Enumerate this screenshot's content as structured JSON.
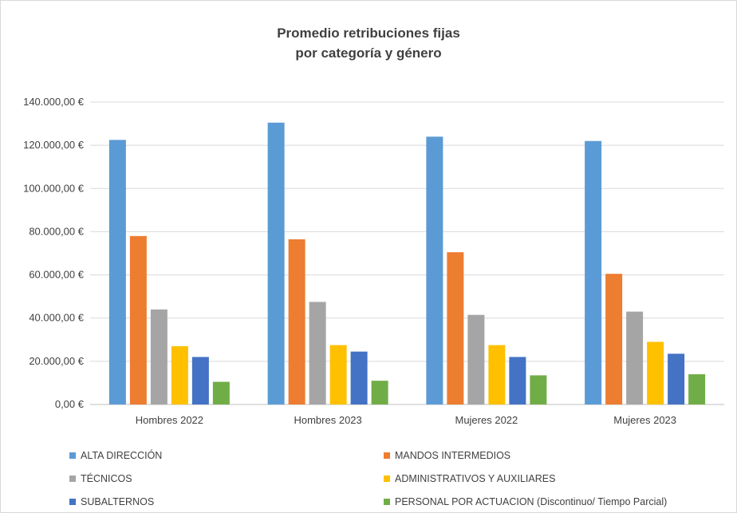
{
  "chart_data": {
    "type": "bar",
    "title_lines": [
      "Promedio retribuciones fijas",
      "por categoría y género"
    ],
    "categories": [
      "Hombres 2022",
      "Hombres 2023",
      "Mujeres 2022",
      "Mujeres 2023"
    ],
    "series": [
      {
        "name": "ALTA DIRECCIÓN",
        "color": "#5b9bd5",
        "values": [
          122500,
          130500,
          124000,
          122000
        ]
      },
      {
        "name": "MANDOS INTERMEDIOS",
        "color": "#ed7d31",
        "values": [
          78000,
          76500,
          70500,
          60500
        ]
      },
      {
        "name": "TÉCNICOS",
        "color": "#a5a5a5",
        "values": [
          44000,
          47500,
          41500,
          43000
        ]
      },
      {
        "name": "ADMINISTRATIVOS Y AUXILIARES",
        "color": "#ffc000",
        "values": [
          27000,
          27500,
          27500,
          29000
        ]
      },
      {
        "name": "SUBALTERNOS",
        "color": "#4472c4",
        "values": [
          22000,
          24500,
          22000,
          23500
        ]
      },
      {
        "name": "PERSONAL POR ACTUACION (Discontinuo/ Tiempo Parcial)",
        "color": "#70ad47",
        "values": [
          10500,
          11000,
          13500,
          14000
        ]
      }
    ],
    "y_ticks": [
      "0,00 €",
      "20.000,00 €",
      "40.000,00 €",
      "60.000,00 €",
      "80.000,00 €",
      "100.000,00 €",
      "120.000,00 €",
      "140.000,00 €"
    ],
    "ylim": [
      0,
      140000
    ],
    "grid": true,
    "legend_position": "bottom"
  }
}
